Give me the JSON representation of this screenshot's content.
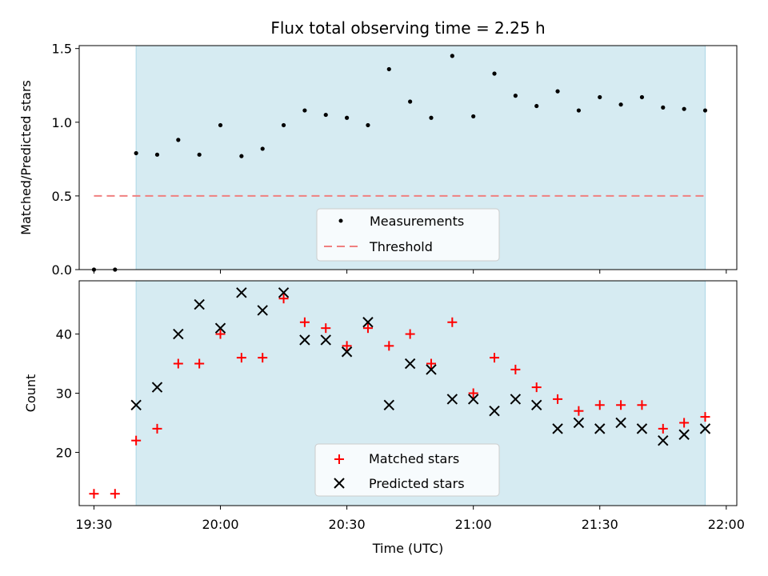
{
  "chart_data": [
    {
      "type": "scatter",
      "title": "Flux total observing time = 2.25 h",
      "ylabel": "Matched/Predicted stars",
      "ylim": [
        0,
        1.52
      ],
      "yticks": [
        "0.0",
        "0.5",
        "1.0",
        "1.5"
      ],
      "ytick_values": [
        0,
        0.5,
        1.0,
        1.5
      ],
      "shaded_interval": [
        "19:40",
        "21:55"
      ],
      "shade_color": "#add8e6",
      "legend_position": "lower-center",
      "series": [
        {
          "name": "Measurements",
          "marker": "dot",
          "color": "#000000",
          "points": [
            [
              "19:30",
              0.0
            ],
            [
              "19:35",
              0.0
            ],
            [
              "19:40",
              0.79
            ],
            [
              "19:45",
              0.78
            ],
            [
              "19:50",
              0.88
            ],
            [
              "19:55",
              0.78
            ],
            [
              "20:00",
              0.98
            ],
            [
              "20:05",
              0.77
            ],
            [
              "20:10",
              0.82
            ],
            [
              "20:15",
              0.98
            ],
            [
              "20:20",
              1.08
            ],
            [
              "20:25",
              1.05
            ],
            [
              "20:30",
              1.03
            ],
            [
              "20:35",
              0.98
            ],
            [
              "20:40",
              1.36
            ],
            [
              "20:45",
              1.14
            ],
            [
              "20:50",
              1.03
            ],
            [
              "20:55",
              1.45
            ],
            [
              "21:00",
              1.04
            ],
            [
              "21:05",
              1.33
            ],
            [
              "21:10",
              1.18
            ],
            [
              "21:15",
              1.11
            ],
            [
              "21:20",
              1.21
            ],
            [
              "21:25",
              1.08
            ],
            [
              "21:30",
              1.17
            ],
            [
              "21:35",
              1.12
            ],
            [
              "21:40",
              1.17
            ],
            [
              "21:45",
              1.1
            ],
            [
              "21:50",
              1.09
            ],
            [
              "21:55",
              1.08
            ]
          ]
        },
        {
          "name": "Threshold",
          "marker": "dashed-line",
          "color": "#f08080",
          "points": [
            [
              "19:30",
              0.5
            ],
            [
              "21:55",
              0.5
            ]
          ]
        }
      ]
    },
    {
      "type": "scatter",
      "xlabel": "Time (UTC)",
      "ylabel": "Count",
      "ylim": [
        11,
        49
      ],
      "yticks": [
        "20",
        "30",
        "40"
      ],
      "ytick_values": [
        20,
        30,
        40
      ],
      "xticks": [
        "19:30",
        "20:00",
        "20:30",
        "21:00",
        "21:30",
        "22:00"
      ],
      "xlim": [
        "19:26.5",
        "22:02.5"
      ],
      "shaded_interval": [
        "19:40",
        "21:55"
      ],
      "shade_color": "#add8e6",
      "legend_position": "lower-center",
      "series": [
        {
          "name": "Matched stars",
          "marker": "plus",
          "color": "#ff0000",
          "points": [
            [
              "19:30",
              13
            ],
            [
              "19:35",
              13
            ],
            [
              "19:40",
              22
            ],
            [
              "19:45",
              24
            ],
            [
              "19:50",
              35
            ],
            [
              "19:55",
              35
            ],
            [
              "20:00",
              40
            ],
            [
              "20:05",
              36
            ],
            [
              "20:10",
              36
            ],
            [
              "20:15",
              46
            ],
            [
              "20:20",
              42
            ],
            [
              "20:25",
              41
            ],
            [
              "20:30",
              38
            ],
            [
              "20:35",
              41
            ],
            [
              "20:40",
              38
            ],
            [
              "20:45",
              40
            ],
            [
              "20:50",
              35
            ],
            [
              "20:55",
              42
            ],
            [
              "21:00",
              30
            ],
            [
              "21:05",
              36
            ],
            [
              "21:10",
              34
            ],
            [
              "21:15",
              31
            ],
            [
              "21:20",
              29
            ],
            [
              "21:25",
              27
            ],
            [
              "21:30",
              28
            ],
            [
              "21:35",
              28
            ],
            [
              "21:40",
              28
            ],
            [
              "21:45",
              24
            ],
            [
              "21:50",
              25
            ],
            [
              "21:55",
              26
            ]
          ]
        },
        {
          "name": "Predicted stars",
          "marker": "x",
          "color": "#000000",
          "points": [
            [
              "19:40",
              28
            ],
            [
              "19:45",
              31
            ],
            [
              "19:50",
              40
            ],
            [
              "19:55",
              45
            ],
            [
              "20:00",
              41
            ],
            [
              "20:05",
              47
            ],
            [
              "20:10",
              44
            ],
            [
              "20:15",
              47
            ],
            [
              "20:20",
              39
            ],
            [
              "20:25",
              39
            ],
            [
              "20:30",
              37
            ],
            [
              "20:35",
              42
            ],
            [
              "20:40",
              28
            ],
            [
              "20:45",
              35
            ],
            [
              "20:50",
              34
            ],
            [
              "20:55",
              29
            ],
            [
              "21:00",
              29
            ],
            [
              "21:05",
              27
            ],
            [
              "21:10",
              29
            ],
            [
              "21:15",
              28
            ],
            [
              "21:20",
              24
            ],
            [
              "21:25",
              25
            ],
            [
              "21:30",
              24
            ],
            [
              "21:35",
              25
            ],
            [
              "21:40",
              24
            ],
            [
              "21:45",
              22
            ],
            [
              "21:50",
              23
            ],
            [
              "21:55",
              24
            ]
          ]
        }
      ]
    }
  ]
}
